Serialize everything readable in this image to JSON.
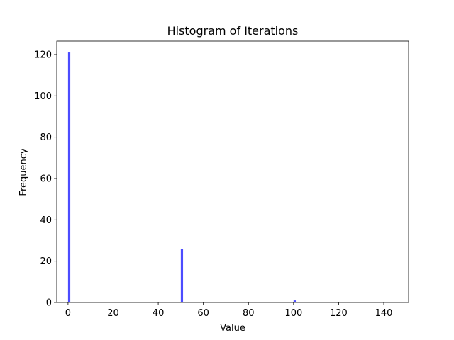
{
  "chart_data": {
    "type": "bar",
    "title": "Histogram of Iterations",
    "xlabel": "Value",
    "ylabel": "Frequency",
    "xlim": [
      -5,
      151
    ],
    "ylim": [
      0,
      126.5
    ],
    "bar_color": "#0000ff",
    "bar_alpha": 0.7,
    "bin_width": 1,
    "x": [
      0,
      50,
      100
    ],
    "values": [
      121,
      26,
      1
    ],
    "xticks": [
      0,
      20,
      40,
      60,
      80,
      100,
      120,
      140
    ],
    "yticks": [
      0,
      20,
      40,
      60,
      80,
      100,
      120
    ],
    "grid": false,
    "legend": "none"
  }
}
